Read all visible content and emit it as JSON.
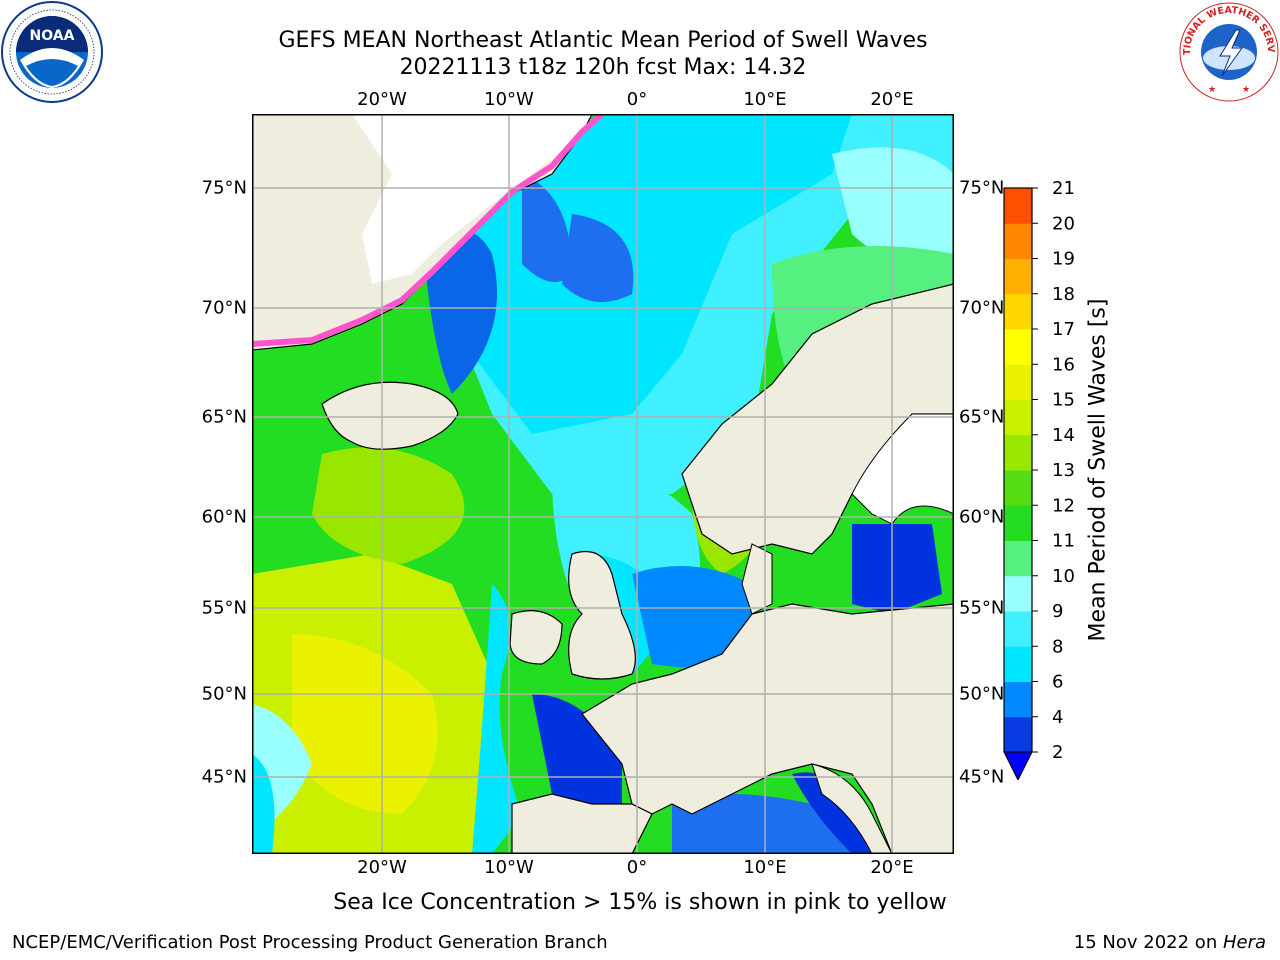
{
  "header": {
    "line1": "GEFS MEAN Northeast Atlantic Mean Period of Swell Waves",
    "line2": "20221113 t18z 120h fcst   Max: 14.32"
  },
  "logos": {
    "left": {
      "icon": "noaa-logo",
      "text": "NOAA"
    },
    "right": {
      "icon": "nws-logo",
      "text": "NATIONAL WEATHER SERVICE"
    }
  },
  "axes": {
    "lon_labels": [
      "20°W",
      "10°W",
      "0°",
      "10°E",
      "20°E"
    ],
    "lat_labels": [
      "75°N",
      "70°N",
      "65°N",
      "60°N",
      "55°N",
      "50°N",
      "45°N"
    ]
  },
  "colorbar": {
    "label": "Mean Period of Swell Waves [s]",
    "ticks": [
      "2",
      "4",
      "6",
      "8",
      "9",
      "10",
      "11",
      "12",
      "13",
      "14",
      "15",
      "16",
      "17",
      "18",
      "19",
      "20",
      "21"
    ],
    "colors": [
      "#0a3ce6",
      "#0088ff",
      "#00e6ff",
      "#40f0ff",
      "#99ffff",
      "#55f080",
      "#22dd22",
      "#55dd11",
      "#99e600",
      "#c8f000",
      "#eaf200",
      "#ffff00",
      "#ffd700",
      "#ffb000",
      "#ff8800",
      "#ff5000",
      "#ff2000",
      "#ff0000"
    ],
    "extend_color": "#0000ff"
  },
  "map": {
    "land_color": "#efedde",
    "grid_color": "#b0b0b0"
  },
  "note": "Sea Ice Concentration > 15% is shown in pink to yellow",
  "footer": {
    "credit": "NCEP/EMC/Verification Post Processing Product Generation Branch",
    "date": "15 Nov 2022 on ",
    "host": "Hera"
  }
}
